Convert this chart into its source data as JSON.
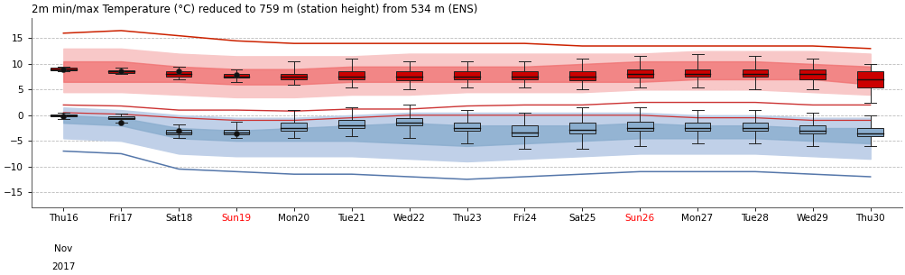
{
  "title": "2m min/max Temperature (°C) reduced to 759 m (station height) from 534 m (ENS)",
  "days": [
    "Thu16",
    "Fri17",
    "Sat18",
    "Sun19",
    "Mon20",
    "Tue21",
    "Wed22",
    "Thu23",
    "Fri24",
    "Sat25",
    "Sun26",
    "Mon27",
    "Tue28",
    "Wed29",
    "Thu30"
  ],
  "day_colors": [
    "black",
    "black",
    "black",
    "red",
    "black",
    "black",
    "black",
    "black",
    "black",
    "black",
    "red",
    "black",
    "black",
    "black",
    "black"
  ],
  "xlabel_line2": "Nov",
  "xlabel_line3": "2017",
  "ylim": [
    -18,
    19
  ],
  "yticks": [
    -15,
    -10,
    -5,
    0,
    5,
    10,
    15
  ],
  "max_box": {
    "whisker_low": [
      8.5,
      8.0,
      7.0,
      6.5,
      6.0,
      5.5,
      5.0,
      5.5,
      5.5,
      5.0,
      5.5,
      5.5,
      5.0,
      5.0,
      2.5
    ],
    "q1": [
      8.8,
      8.3,
      7.5,
      7.3,
      7.0,
      7.0,
      6.8,
      7.0,
      7.0,
      6.8,
      7.3,
      7.5,
      7.5,
      7.0,
      5.5
    ],
    "median": [
      9.0,
      8.5,
      8.0,
      7.5,
      7.5,
      7.5,
      7.5,
      7.5,
      7.5,
      7.5,
      8.0,
      8.0,
      8.0,
      8.0,
      7.0
    ],
    "q3": [
      9.2,
      8.8,
      8.5,
      8.0,
      8.0,
      8.5,
      8.5,
      8.5,
      8.5,
      8.5,
      9.0,
      9.0,
      9.0,
      9.0,
      8.5
    ],
    "whisker_high": [
      9.5,
      9.2,
      9.5,
      9.0,
      10.5,
      11.0,
      10.5,
      10.5,
      10.5,
      11.0,
      11.5,
      12.0,
      11.5,
      11.0,
      10.0
    ]
  },
  "min_box": {
    "whisker_low": [
      -0.8,
      -1.5,
      -4.5,
      -4.5,
      -4.5,
      -4.0,
      -4.5,
      -5.5,
      -6.5,
      -6.5,
      -6.0,
      -5.5,
      -5.5,
      -6.0,
      -6.0
    ],
    "q1": [
      -0.3,
      -0.8,
      -3.8,
      -3.8,
      -3.0,
      -2.5,
      -2.0,
      -3.0,
      -4.0,
      -3.5,
      -3.0,
      -3.0,
      -3.0,
      -3.5,
      -4.0
    ],
    "median": [
      -0.1,
      -0.5,
      -3.3,
      -3.3,
      -2.5,
      -2.0,
      -1.5,
      -2.5,
      -3.3,
      -2.8,
      -2.5,
      -2.5,
      -2.5,
      -3.0,
      -3.5
    ],
    "q3": [
      0.1,
      -0.2,
      -2.8,
      -2.8,
      -1.5,
      -1.0,
      -0.5,
      -1.5,
      -2.0,
      -1.5,
      -1.3,
      -1.5,
      -1.5,
      -2.0,
      -2.5
    ],
    "whisker_high": [
      0.5,
      0.3,
      -1.8,
      -1.3,
      1.0,
      1.5,
      2.0,
      1.0,
      0.5,
      1.5,
      1.5,
      1.0,
      1.0,
      0.5,
      0.0
    ]
  },
  "det_max": [
    9.0,
    8.5,
    8.5,
    7.8,
    null,
    null,
    null,
    null,
    null,
    null,
    null,
    null,
    null,
    null,
    null
  ],
  "det_min": [
    -0.3,
    -1.5,
    -3.0,
    -3.5,
    null,
    null,
    null,
    null,
    null,
    null,
    null,
    null,
    null,
    null,
    null
  ],
  "ens_max_line_top": [
    16.0,
    16.5,
    15.5,
    14.5,
    14.0,
    14.0,
    14.0,
    14.0,
    14.0,
    13.5,
    13.5,
    13.5,
    13.5,
    13.5,
    13.0
  ],
  "ens_max_line_bot": [
    2.0,
    1.8,
    1.0,
    1.0,
    0.8,
    1.2,
    1.2,
    1.8,
    2.0,
    2.0,
    2.5,
    2.5,
    2.5,
    2.0,
    2.0
  ],
  "ens_min_line_top": [
    0.5,
    0.2,
    -0.5,
    -1.0,
    -1.0,
    -0.5,
    0.0,
    0.0,
    0.0,
    0.0,
    0.0,
    -0.5,
    -0.5,
    -1.0,
    -1.0
  ],
  "ens_min_line_bot": [
    -7.0,
    -7.5,
    -10.5,
    -11.0,
    -11.5,
    -11.5,
    -12.0,
    -12.5,
    -12.0,
    -11.5,
    -11.0,
    -11.0,
    -11.0,
    -11.5,
    -12.0
  ],
  "ens_max_band_p90_top": [
    13.0,
    13.0,
    12.0,
    11.5,
    11.5,
    11.5,
    12.0,
    12.0,
    12.0,
    12.0,
    12.0,
    12.5,
    12.5,
    12.5,
    12.0
  ],
  "ens_max_band_p90_bot": [
    4.5,
    4.5,
    4.0,
    3.5,
    3.5,
    4.0,
    4.0,
    4.5,
    4.5,
    4.5,
    5.0,
    5.0,
    5.0,
    4.5,
    4.0
  ],
  "ens_max_band_p75_top": [
    10.5,
    10.5,
    9.5,
    9.0,
    9.0,
    9.5,
    9.5,
    9.5,
    9.5,
    10.0,
    10.5,
    10.5,
    10.5,
    10.0,
    9.5
  ],
  "ens_max_band_p75_bot": [
    6.5,
    6.5,
    6.5,
    6.0,
    6.0,
    6.5,
    6.5,
    6.5,
    6.5,
    6.5,
    6.5,
    7.0,
    7.0,
    7.0,
    6.0
  ],
  "ens_min_band_p90_top": [
    1.5,
    1.0,
    0.0,
    -0.5,
    -0.5,
    0.0,
    0.5,
    0.5,
    0.5,
    0.5,
    0.5,
    0.0,
    0.0,
    -0.5,
    -0.5
  ],
  "ens_min_band_p90_bot": [
    -4.5,
    -5.0,
    -7.5,
    -8.0,
    -8.0,
    -8.0,
    -8.5,
    -9.0,
    -8.5,
    -8.0,
    -7.5,
    -7.5,
    -7.5,
    -8.0,
    -8.5
  ],
  "ens_min_band_p75_top": [
    0.0,
    -0.5,
    -2.5,
    -3.0,
    -2.5,
    -2.0,
    -1.5,
    -2.0,
    -2.0,
    -2.0,
    -1.5,
    -2.0,
    -2.0,
    -2.5,
    -2.5
  ],
  "ens_min_band_p75_bot": [
    -1.5,
    -2.0,
    -4.5,
    -5.0,
    -5.0,
    -5.0,
    -5.5,
    -6.0,
    -5.5,
    -5.0,
    -4.5,
    -4.5,
    -4.5,
    -5.0,
    -5.5
  ],
  "box_width": 0.45,
  "color_red_box": "#cc0000",
  "color_blue_box": "#8aadce",
  "color_red_band_p90": "#f8c8c8",
  "color_red_band_p75": "#f07070",
  "color_blue_band_p90": "#c0d0e8",
  "color_blue_band_p75": "#8aadce",
  "color_red_line_top": "#cc2200",
  "color_red_line_bot": "#cc3333",
  "color_blue_line": "#5577aa",
  "bg_color": "#ffffff",
  "grid_color": "#bbbbbb"
}
